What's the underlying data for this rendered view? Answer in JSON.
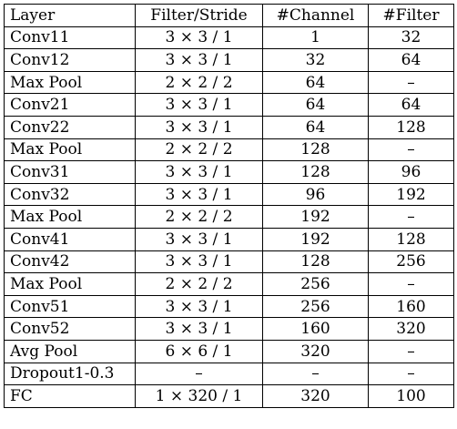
{
  "table": {
    "headers": [
      "Layer",
      "Filter/Stride",
      "#Channel",
      "#Filter"
    ],
    "rows": [
      [
        "Conv11",
        "3 × 3 / 1",
        "1",
        "32"
      ],
      [
        "Conv12",
        "3 × 3 / 1",
        "32",
        "64"
      ],
      [
        "Max Pool",
        "2 × 2 / 2",
        "64",
        "–"
      ],
      [
        "Conv21",
        "3 × 3 / 1",
        "64",
        "64"
      ],
      [
        "Conv22",
        "3 × 3 / 1",
        "64",
        "128"
      ],
      [
        "Max Pool",
        "2 × 2 / 2",
        "128",
        "–"
      ],
      [
        "Conv31",
        "3 × 3 / 1",
        "128",
        "96"
      ],
      [
        "Conv32",
        "3 × 3 / 1",
        "96",
        "192"
      ],
      [
        "Max Pool",
        "2 × 2 / 2",
        "192",
        "–"
      ],
      [
        "Conv41",
        "3 × 3 / 1",
        "192",
        "128"
      ],
      [
        "Conv42",
        "3 × 3 / 1",
        "128",
        "256"
      ],
      [
        "Max Pool",
        "2 × 2 / 2",
        "256",
        "–"
      ],
      [
        "Conv51",
        "3 × 3 / 1",
        "256",
        "160"
      ],
      [
        "Conv52",
        "3 × 3 / 1",
        "160",
        "320"
      ],
      [
        "Avg Pool",
        "6 × 6 / 1",
        "320",
        "–"
      ],
      [
        "Dropout1-0.3",
        "–",
        "–",
        "–"
      ],
      [
        "FC",
        "1 × 320 / 1",
        "320",
        "100"
      ]
    ]
  }
}
